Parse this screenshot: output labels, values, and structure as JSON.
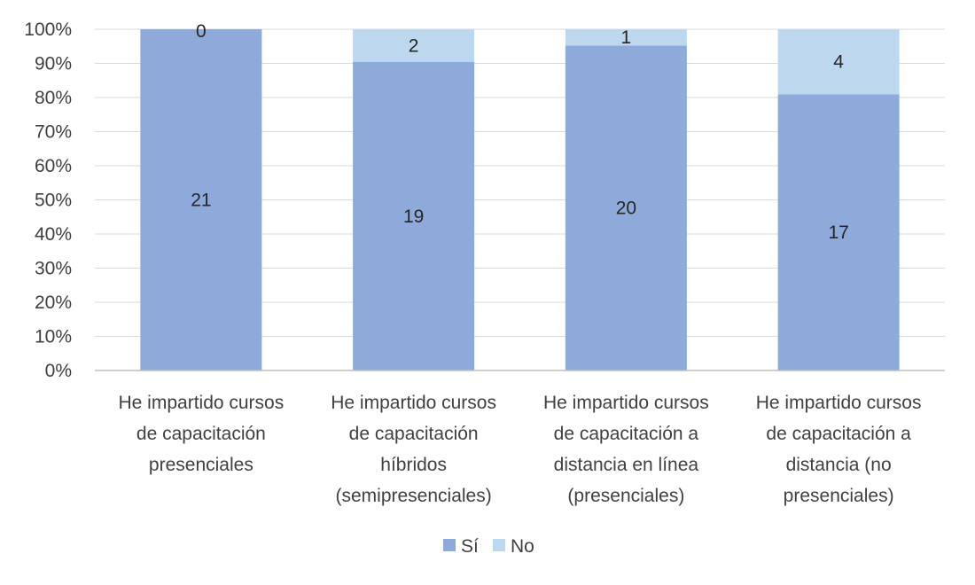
{
  "chart_data": {
    "type": "bar",
    "stacking": "percent",
    "categories": [
      [
        "He impartido cursos",
        "de capacitación",
        "presenciales"
      ],
      [
        "He impartido cursos",
        "de capacitación",
        "híbridos",
        "(semipresenciales)"
      ],
      [
        "He impartido cursos",
        "de capacitación a",
        "distancia en línea",
        "(presenciales)"
      ],
      [
        "He impartido cursos",
        "de capacitación a",
        "distancia (no",
        "presenciales)"
      ]
    ],
    "series": [
      {
        "name": "Sí",
        "values": [
          21,
          19,
          20,
          17
        ],
        "color": "#8eaadb"
      },
      {
        "name": "No",
        "values": [
          0,
          2,
          1,
          4
        ],
        "color": "#bdd7ee"
      }
    ],
    "ylim": [
      0,
      100
    ],
    "yticks": [
      "0%",
      "10%",
      "20%",
      "30%",
      "40%",
      "50%",
      "60%",
      "70%",
      "80%",
      "90%",
      "100%"
    ],
    "grid": true,
    "legend": "bottom",
    "title": "",
    "xlabel": "",
    "ylabel": ""
  }
}
